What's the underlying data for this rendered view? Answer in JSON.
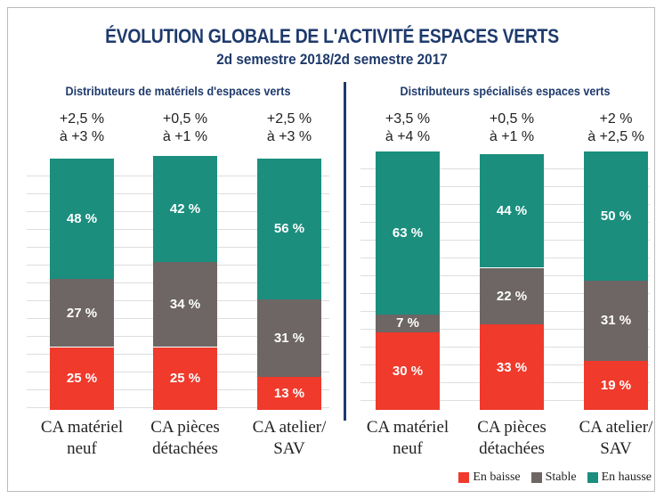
{
  "title": "ÉVOLUTION GLOBALE DE L'ACTIVITÉ ESPACES VERTS",
  "subtitle": "2d semestre 2018/2d semestre 2017",
  "chart_data": [
    {
      "type": "stacked_bar",
      "title": "Distributeurs de matériels d'espaces verts",
      "categories": [
        [
          "CA matériel",
          "neuf"
        ],
        [
          "CA pièces",
          "détachées"
        ],
        [
          "CA atelier/",
          "SAV"
        ]
      ],
      "range_labels": [
        [
          "+2,5 %",
          "à +3 %"
        ],
        [
          "+0,5 %",
          "à +1 %"
        ],
        [
          "+2,5 %",
          "à +3 %"
        ]
      ],
      "ylim": [
        0,
        100
      ],
      "grid": true,
      "series": [
        {
          "name": "En baisse",
          "color": "#ef3a2c",
          "values": [
            25,
            25,
            13
          ],
          "value_labels": [
            "25 %",
            "25 %",
            "13 %"
          ]
        },
        {
          "name": "Stable",
          "color": "#6d6664",
          "values": [
            27,
            34,
            31
          ],
          "value_labels": [
            "27 %",
            "34 %",
            "31 %"
          ]
        },
        {
          "name": "En hausse",
          "color": "#1b8e7e",
          "values": [
            48,
            42,
            56
          ],
          "value_labels": [
            "48 %",
            "42 %",
            "56 %"
          ]
        }
      ]
    },
    {
      "type": "stacked_bar",
      "title": "Distributeurs spécialisés espaces verts",
      "categories": [
        [
          "CA matériel",
          "neuf"
        ],
        [
          "CA pièces",
          "détachées"
        ],
        [
          "CA atelier/",
          "SAV"
        ]
      ],
      "range_labels": [
        [
          "+3,5 %",
          "à +4 %"
        ],
        [
          "+0,5 %",
          "à +1 %"
        ],
        [
          "+2 %",
          "à +2,5 %"
        ]
      ],
      "ylim": [
        0,
        100
      ],
      "grid": true,
      "legend": "bottom-right",
      "series": [
        {
          "name": "En baisse",
          "color": "#ef3a2c",
          "values": [
            30,
            33,
            19
          ],
          "value_labels": [
            "30 %",
            "33 %",
            "19 %"
          ]
        },
        {
          "name": "Stable",
          "color": "#6d6664",
          "values": [
            7,
            22,
            31
          ],
          "value_labels": [
            "7 %",
            "22 %",
            "31 %"
          ]
        },
        {
          "name": "En hausse",
          "color": "#1b8e7e",
          "values": [
            63,
            44,
            50
          ],
          "value_labels": [
            "63 %",
            "44 %",
            "50 %"
          ]
        }
      ]
    }
  ]
}
